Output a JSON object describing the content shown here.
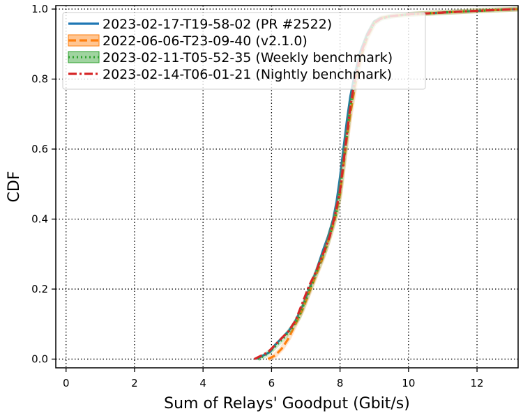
{
  "chart_data": {
    "type": "line",
    "title": "",
    "xlabel": "Sum of Relays' Goodput (Gbit/s)",
    "ylabel": "CDF",
    "xlim": [
      -0.3,
      13.2
    ],
    "ylim": [
      -0.025,
      1.01
    ],
    "xticks": [
      0,
      2,
      4,
      6,
      8,
      10,
      12
    ],
    "xtick_labels": [
      "0",
      "2",
      "4",
      "6",
      "8",
      "10",
      "12"
    ],
    "yticks": [
      0.0,
      0.2,
      0.4,
      0.6,
      0.8,
      1.0
    ],
    "ytick_labels": [
      "0.0",
      "0.2",
      "0.4",
      "0.6",
      "0.8",
      "1.0"
    ],
    "grid": true,
    "grid_style": "dotted",
    "legend_position": "top-left",
    "series": [
      {
        "name": "2023-02-17-T19-58-02 (PR #2522)",
        "color": "#1f77b4",
        "linestyle": "solid",
        "x": [
          5.55,
          5.75,
          5.95,
          6.1,
          6.3,
          6.5,
          6.7,
          6.9,
          7.1,
          7.3,
          7.5,
          7.65,
          7.8,
          7.9,
          8.0,
          8.1,
          8.2,
          8.3,
          8.4,
          8.5,
          8.6,
          8.8,
          9.0,
          9.2,
          9.5,
          10.0,
          11.0,
          12.0,
          13.2
        ],
        "y": [
          0.0,
          0.01,
          0.02,
          0.04,
          0.06,
          0.08,
          0.11,
          0.15,
          0.2,
          0.25,
          0.31,
          0.35,
          0.4,
          0.45,
          0.52,
          0.6,
          0.68,
          0.75,
          0.8,
          0.84,
          0.88,
          0.93,
          0.965,
          0.975,
          0.98,
          0.985,
          0.99,
          0.995,
          1.0
        ]
      },
      {
        "name": "2022-06-06-T23-09-40 (v2.1.0)",
        "color": "#ff7f0e",
        "linestyle": "dashed",
        "band": true,
        "x": [
          5.9,
          6.1,
          6.3,
          6.5,
          6.7,
          6.9,
          7.1,
          7.3,
          7.5,
          7.7,
          7.85,
          8.0,
          8.1,
          8.2,
          8.3,
          8.4,
          8.5,
          8.6,
          8.8,
          9.0,
          9.2,
          9.5,
          10.0,
          11.0,
          12.0,
          13.2
        ],
        "y": [
          0.0,
          0.01,
          0.03,
          0.06,
          0.1,
          0.14,
          0.19,
          0.24,
          0.29,
          0.35,
          0.4,
          0.47,
          0.55,
          0.63,
          0.7,
          0.76,
          0.81,
          0.86,
          0.92,
          0.96,
          0.975,
          0.98,
          0.985,
          0.99,
          0.995,
          1.0
        ]
      },
      {
        "name": "2023-02-11-T05-52-35 (Weekly benchmark)",
        "color": "#2ca02c",
        "linestyle": "dotted",
        "band": true,
        "x": [
          5.6,
          5.8,
          6.0,
          6.2,
          6.4,
          6.6,
          6.8,
          7.0,
          7.2,
          7.4,
          7.6,
          7.75,
          7.9,
          8.0,
          8.1,
          8.2,
          8.3,
          8.4,
          8.5,
          8.6,
          8.8,
          9.0,
          9.2,
          9.5,
          10.0,
          11.0,
          12.0,
          13.2
        ],
        "y": [
          0.0,
          0.01,
          0.025,
          0.045,
          0.065,
          0.09,
          0.12,
          0.17,
          0.22,
          0.27,
          0.32,
          0.37,
          0.42,
          0.48,
          0.56,
          0.64,
          0.72,
          0.78,
          0.83,
          0.87,
          0.925,
          0.96,
          0.973,
          0.98,
          0.985,
          0.99,
          0.995,
          1.0
        ]
      },
      {
        "name": "2023-02-14-T06-01-21 (Nightly benchmark)",
        "color": "#d62728",
        "linestyle": "dashdot",
        "x": [
          5.5,
          5.7,
          5.9,
          6.1,
          6.3,
          6.5,
          6.7,
          6.9,
          7.1,
          7.3,
          7.5,
          7.7,
          7.85,
          8.0,
          8.1,
          8.2,
          8.3,
          8.4,
          8.5,
          8.6,
          8.8,
          9.0,
          9.2,
          9.5,
          10.0,
          11.0,
          12.0,
          13.2
        ],
        "y": [
          0.0,
          0.01,
          0.02,
          0.04,
          0.06,
          0.08,
          0.11,
          0.16,
          0.21,
          0.25,
          0.3,
          0.35,
          0.41,
          0.48,
          0.56,
          0.64,
          0.72,
          0.78,
          0.83,
          0.87,
          0.925,
          0.96,
          0.973,
          0.98,
          0.985,
          0.99,
          0.995,
          1.0
        ]
      }
    ]
  }
}
